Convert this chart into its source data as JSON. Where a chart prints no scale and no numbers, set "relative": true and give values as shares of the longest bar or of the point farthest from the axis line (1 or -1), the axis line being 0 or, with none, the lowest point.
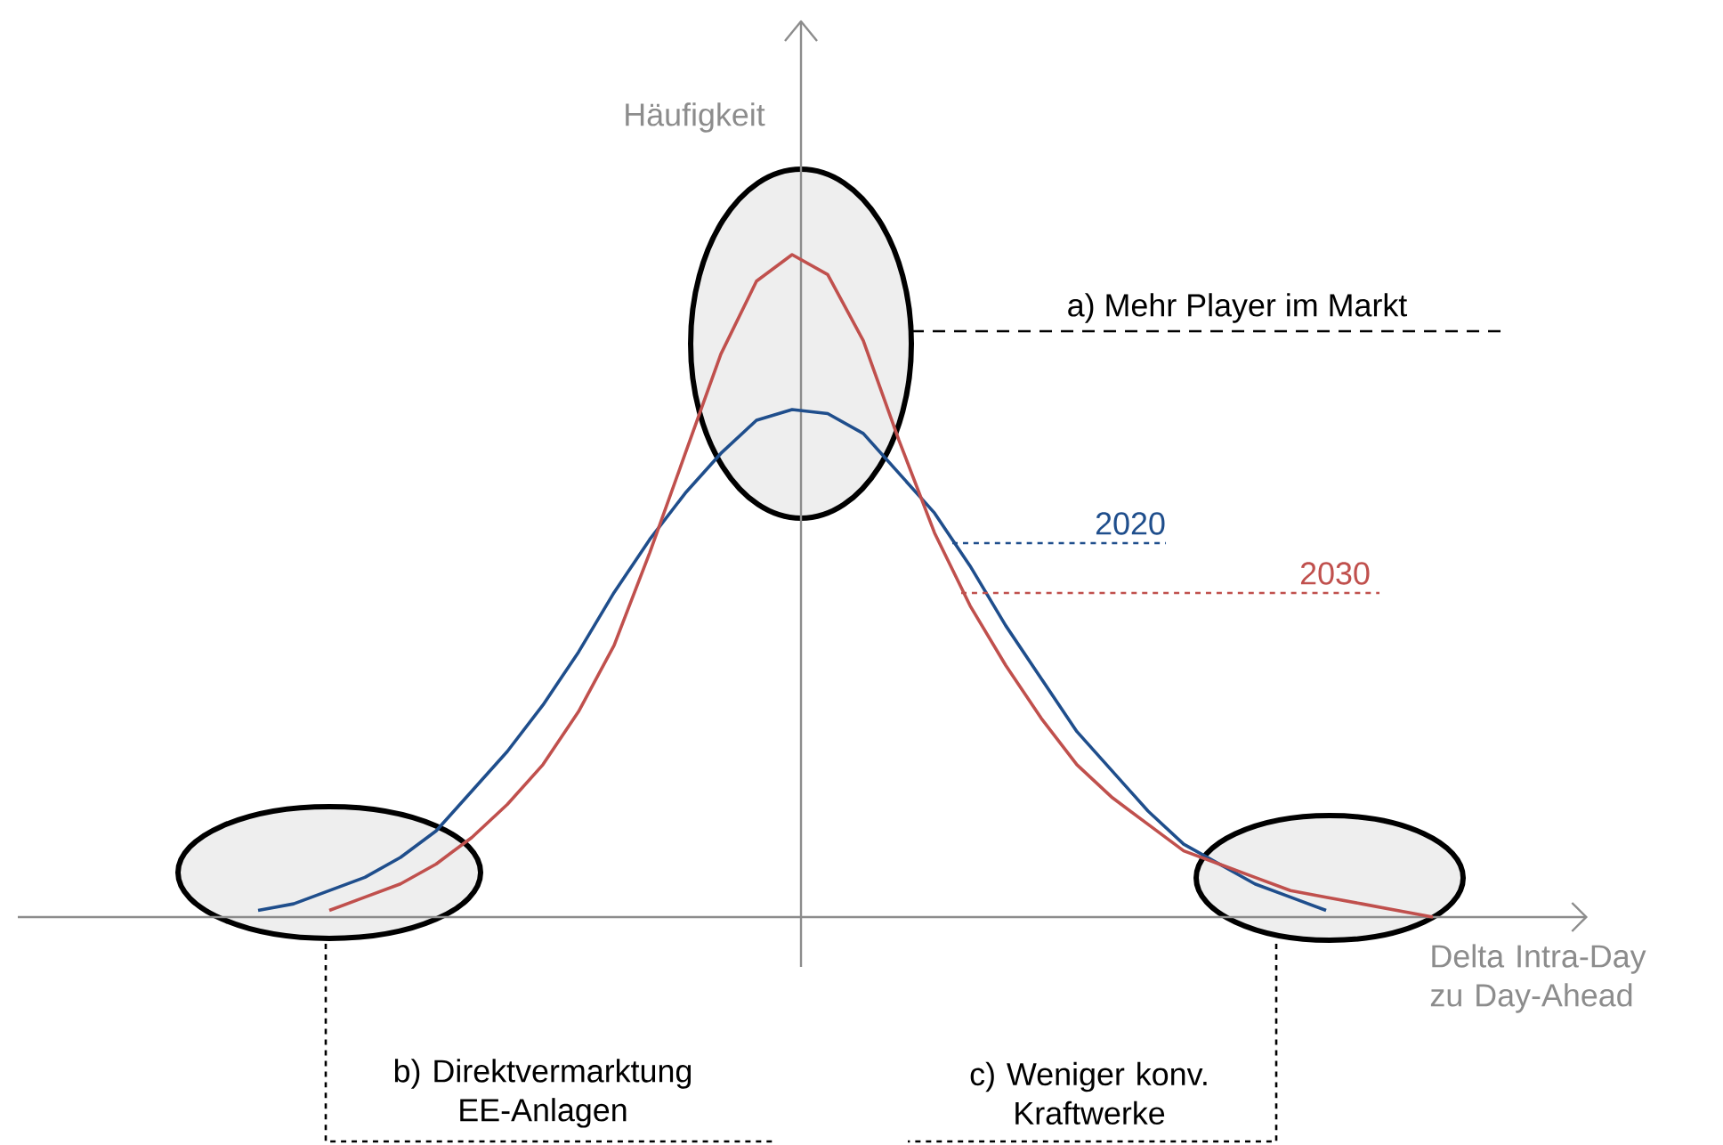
{
  "chart_data": {
    "type": "line",
    "relative": true,
    "marker": "none",
    "ylabel": "Häufigkeit",
    "xlabel": "Delta Intra-Day zu Day-Ahead",
    "categories": [
      null,
      null,
      null,
      null,
      null,
      null,
      null,
      null,
      null,
      null,
      null,
      null,
      null,
      null,
      null,
      null,
      null,
      null,
      null,
      null,
      null,
      null,
      null,
      null,
      null,
      null,
      null,
      null,
      null,
      null,
      null,
      null,
      null,
      null
    ],
    "series": [
      {
        "name": "2020",
        "color": "#1f4e8c",
        "values": [
          0.01,
          0.02,
          0.04,
          0.06,
          0.09,
          0.13,
          0.19,
          0.25,
          0.32,
          0.4,
          0.49,
          0.57,
          0.64,
          0.7,
          0.75,
          0.766,
          0.76,
          0.73,
          0.67,
          0.61,
          0.53,
          0.44,
          0.36,
          0.28,
          0.22,
          0.16,
          0.11,
          0.08,
          0.05,
          0.03,
          0.01,
          null,
          null,
          null
        ]
      },
      {
        "name": "2030",
        "color": "#c0504d",
        "values": [
          null,
          null,
          0.01,
          0.03,
          0.05,
          0.08,
          0.12,
          0.17,
          0.23,
          0.31,
          0.41,
          0.55,
          0.7,
          0.85,
          0.96,
          1.0,
          0.97,
          0.87,
          0.72,
          0.58,
          0.47,
          0.38,
          0.3,
          0.23,
          0.18,
          0.14,
          0.1,
          0.08,
          0.06,
          0.04,
          0.03,
          0.02,
          0.01,
          0.0
        ]
      }
    ],
    "annotations": [
      "a) Mehr Player im Markt",
      "b) Direktvermarktung EE-Anlagen",
      "c) Weniger konv. Kraftwerke"
    ]
  }
}
